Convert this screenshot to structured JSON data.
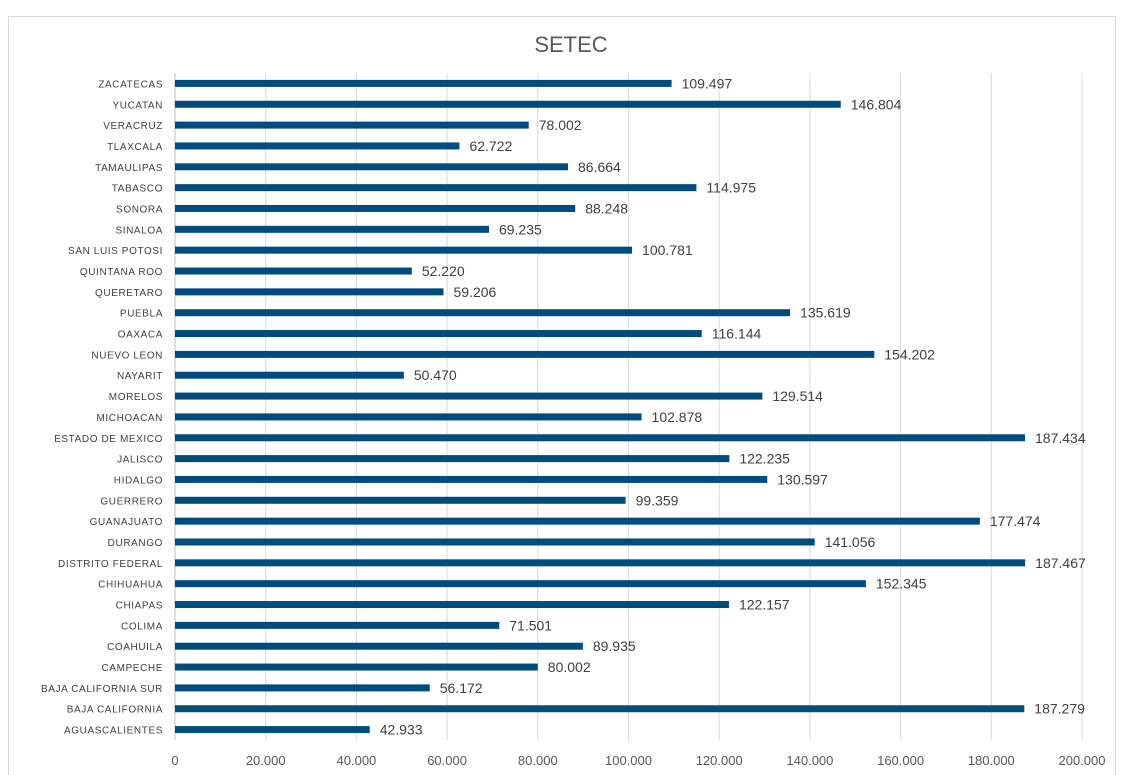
{
  "chart_data": {
    "type": "bar",
    "orientation": "horizontal",
    "title": "SETEC",
    "xlabel": "",
    "ylabel": "",
    "xlim": [
      0,
      200000
    ],
    "grid": true,
    "bar_color": "#004c7f",
    "categories": [
      "AGUASCALIENTES",
      "BAJA CALIFORNIA",
      "BAJA CALIFORNIA SUR",
      "CAMPECHE",
      "COAHUILA",
      "COLIMA",
      "CHIAPAS",
      "CHIHUAHUA",
      "DISTRITO FEDERAL",
      "DURANGO",
      "GUANAJUATO",
      "GUERRERO",
      "HIDALGO",
      "JALISCO",
      "ESTADO DE MEXICO",
      "MICHOACAN",
      "MORELOS",
      "NAYARIT",
      "NUEVO LEON",
      "OAXACA",
      "PUEBLA",
      "QUERETARO",
      "QUINTANA ROO",
      "SAN LUIS POTOSI",
      "SINALOA",
      "SONORA",
      "TABASCO",
      "TAMAULIPAS",
      "TLAXCALA",
      "VERACRUZ",
      "YUCATAN",
      "ZACATECAS"
    ],
    "values": [
      42933,
      187279,
      56172,
      80002,
      89935,
      71501,
      122157,
      152345,
      187467,
      141056,
      177474,
      99359,
      130597,
      122235,
      187434,
      102878,
      129514,
      50470,
      154202,
      116144,
      135619,
      59206,
      52220,
      100781,
      69235,
      88248,
      114975,
      86664,
      62722,
      78002,
      146804,
      109497
    ],
    "value_labels": [
      "42.933",
      "187.279",
      "56.172",
      "80.002",
      "89.935",
      "71.501",
      "122.157",
      "152.345",
      "187.467",
      "141.056",
      "177.474",
      "99.359",
      "130.597",
      "122.235",
      "187.434",
      "102.878",
      "129.514",
      "50.470",
      "154.202",
      "116.144",
      "135.619",
      "59.206",
      "52.220",
      "100.781",
      "69.235",
      "88.248",
      "114.975",
      "86.664",
      "62.722",
      "78.002",
      "146.804",
      "109.497"
    ],
    "x_ticks": [
      0,
      20000,
      40000,
      60000,
      80000,
      100000,
      120000,
      140000,
      160000,
      180000,
      200000
    ],
    "x_tick_labels": [
      "0",
      "20.000",
      "40.000",
      "60.000",
      "80.000",
      "100.000",
      "120.000",
      "140.000",
      "160.000",
      "180.000",
      "200.000"
    ]
  }
}
